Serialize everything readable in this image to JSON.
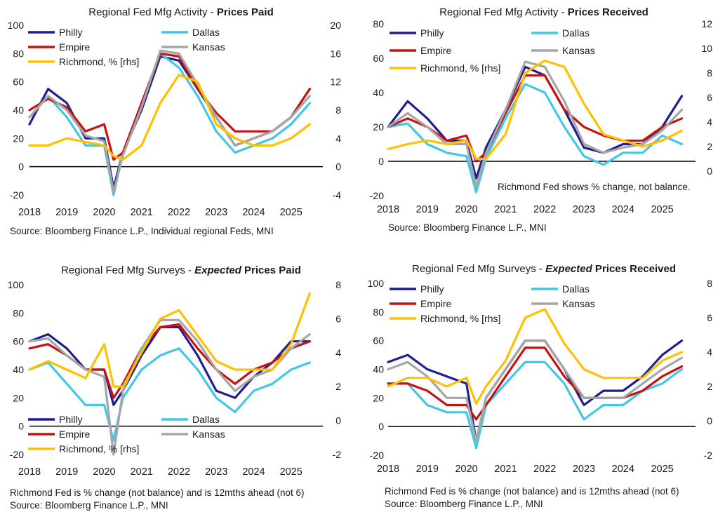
{
  "colors": {
    "philly": "#1f1f8f",
    "dallas": "#44c6e6",
    "empire": "#c41414",
    "kansas": "#a6a6a6",
    "richmond": "#ffc000",
    "zero": "#000000"
  },
  "legend": {
    "philly": "Philly",
    "dallas": "Dallas",
    "empire": "Empire",
    "kansas": "Kansas",
    "richmond": "Richmond, % [rhs]",
    "richmond_short": "Richmond, % [rhs]"
  },
  "panels": [
    {
      "title_plain": "Regional Fed Mfg Activity - ",
      "title_em": "Prices Paid",
      "em_style": "bold",
      "source": "Source: Bloomberg Finance L.P., Individual regional Feds, MNI",
      "note": "",
      "inline_note": ""
    },
    {
      "title_plain": "Regional Fed Mfg Activity - ",
      "title_em": "Prices Received",
      "em_style": "bold",
      "source": "Source: Bloomberg Finance L.P., MNI",
      "note": "",
      "inline_note": "Richmond Fed shows % change, not balance."
    },
    {
      "title_plain": "Regional Fed Mfg Surveys - ",
      "title_em": "Expected",
      "title_tail": " Prices Paid",
      "em_style": "italic",
      "source": "Source: Bloomberg Finance L.P., MNI",
      "note": "Richmond Fed is % change (not balance) and is 12mths ahead (not 6)",
      "inline_note": ""
    },
    {
      "title_plain": "Regional Fed Mfg Surveys - ",
      "title_em": "Expected",
      "title_tail": " Prices Received",
      "em_style": "italic",
      "source": "Source: Bloomberg Finance L.P., MNI",
      "note": "Richmond Fed is % change (not balance) and is 12mths ahead (not 6)",
      "inline_note": ""
    }
  ],
  "chart_data": [
    {
      "type": "line",
      "title": "Regional Fed Mfg Activity - Prices Paid",
      "categories": [
        "2018",
        "2019",
        "2020",
        "2021",
        "2022",
        "2023",
        "2024",
        "2025"
      ],
      "ylim": [
        -20,
        100
      ],
      "yticks": [
        -20,
        0,
        20,
        40,
        60,
        80,
        100
      ],
      "y2lim": [
        -4,
        20
      ],
      "y2ticks": [
        -4,
        0,
        4,
        8,
        12,
        16,
        20
      ],
      "x": [
        2018.0,
        2018.5,
        2019.0,
        2019.5,
        2020.0,
        2020.25,
        2020.5,
        2021.0,
        2021.5,
        2022.0,
        2022.5,
        2023.0,
        2023.5,
        2024.0,
        2024.5,
        2025.0,
        2025.5
      ],
      "series": [
        {
          "name": "Philly",
          "key": "philly",
          "axis": "left",
          "values": [
            30,
            55,
            45,
            20,
            20,
            -15,
            10,
            40,
            78,
            75,
            55,
            35,
            15,
            20,
            25,
            35,
            55
          ]
        },
        {
          "name": "Dallas",
          "key": "dallas",
          "axis": "left",
          "values": [
            35,
            50,
            35,
            15,
            15,
            -20,
            10,
            45,
            80,
            70,
            50,
            25,
            10,
            15,
            20,
            30,
            45
          ]
        },
        {
          "name": "Empire",
          "key": "empire",
          "axis": "left",
          "values": [
            40,
            48,
            42,
            25,
            30,
            5,
            10,
            45,
            80,
            78,
            55,
            38,
            25,
            25,
            25,
            35,
            55
          ]
        },
        {
          "name": "Kansas",
          "key": "kansas",
          "axis": "left",
          "values": [
            35,
            50,
            40,
            22,
            18,
            -18,
            8,
            42,
            82,
            80,
            58,
            35,
            15,
            20,
            25,
            35,
            50
          ]
        },
        {
          "name": "Richmond, % [rhs]",
          "key": "richmond",
          "axis": "right",
          "values": [
            3,
            3,
            4,
            3.5,
            3,
            1.5,
            1,
            3,
            9,
            13,
            12,
            6,
            4,
            3,
            3,
            4,
            6
          ]
        }
      ]
    },
    {
      "type": "line",
      "title": "Regional Fed Mfg Activity - Prices Received",
      "categories": [
        "2018",
        "2019",
        "2020",
        "2021",
        "2022",
        "2023",
        "2024",
        "2025"
      ],
      "ylim": [
        -20,
        80
      ],
      "yticks": [
        -20,
        0,
        20,
        40,
        60,
        80
      ],
      "y2lim": [
        -2,
        12
      ],
      "y2ticks": [
        0,
        2,
        4,
        6,
        8,
        10,
        12
      ],
      "x": [
        2018.0,
        2018.5,
        2019.0,
        2019.5,
        2020.0,
        2020.25,
        2020.5,
        2021.0,
        2021.5,
        2022.0,
        2022.5,
        2023.0,
        2023.5,
        2024.0,
        2024.5,
        2025.0,
        2025.5
      ],
      "series": [
        {
          "name": "Philly",
          "key": "philly",
          "axis": "left",
          "values": [
            20,
            35,
            25,
            12,
            12,
            -10,
            8,
            30,
            55,
            50,
            30,
            8,
            5,
            10,
            10,
            20,
            38
          ]
        },
        {
          "name": "Dallas",
          "key": "dallas",
          "axis": "left",
          "values": [
            20,
            22,
            10,
            5,
            3,
            -18,
            2,
            25,
            45,
            40,
            20,
            3,
            -2,
            5,
            5,
            15,
            10
          ]
        },
        {
          "name": "Empire",
          "key": "empire",
          "axis": "left",
          "values": [
            20,
            25,
            20,
            12,
            15,
            0,
            5,
            28,
            50,
            50,
            30,
            20,
            15,
            12,
            12,
            20,
            25
          ]
        },
        {
          "name": "Kansas",
          "key": "kansas",
          "axis": "left",
          "values": [
            20,
            28,
            20,
            10,
            10,
            -15,
            5,
            30,
            58,
            55,
            35,
            10,
            5,
            8,
            10,
            18,
            30
          ]
        },
        {
          "name": "Richmond, % [rhs]",
          "key": "richmond",
          "axis": "right",
          "values": [
            1.8,
            2.2,
            2.5,
            2.2,
            2.5,
            1,
            1,
            3,
            8,
            9,
            8.5,
            5.5,
            3,
            2.5,
            2,
            2.5,
            3.3
          ]
        }
      ]
    },
    {
      "type": "line",
      "title": "Regional Fed Mfg Surveys - Expected Prices Paid",
      "categories": [
        "2018",
        "2019",
        "2020",
        "2021",
        "2022",
        "2023",
        "2024",
        "2025"
      ],
      "ylim": [
        -20,
        100
      ],
      "yticks": [
        -20,
        0,
        20,
        40,
        60,
        80,
        100
      ],
      "y2lim": [
        -2,
        8
      ],
      "y2ticks": [
        -2,
        0,
        2,
        4,
        6,
        8
      ],
      "x": [
        2018.0,
        2018.5,
        2019.0,
        2019.5,
        2020.0,
        2020.25,
        2020.5,
        2021.0,
        2021.5,
        2022.0,
        2022.5,
        2023.0,
        2023.5,
        2024.0,
        2024.5,
        2025.0,
        2025.5
      ],
      "series": [
        {
          "name": "Philly",
          "key": "philly",
          "axis": "left",
          "values": [
            60,
            65,
            55,
            40,
            40,
            15,
            25,
            50,
            70,
            70,
            50,
            25,
            20,
            35,
            45,
            60,
            60
          ]
        },
        {
          "name": "Dallas",
          "key": "dallas",
          "axis": "left",
          "values": [
            40,
            45,
            30,
            15,
            15,
            -10,
            20,
            40,
            50,
            55,
            40,
            20,
            10,
            25,
            30,
            40,
            45
          ]
        },
        {
          "name": "Empire",
          "key": "empire",
          "axis": "left",
          "values": [
            55,
            58,
            50,
            40,
            40,
            20,
            30,
            55,
            70,
            72,
            55,
            40,
            30,
            40,
            45,
            55,
            60
          ]
        },
        {
          "name": "Kansas",
          "key": "kansas",
          "axis": "left",
          "values": [
            60,
            62,
            50,
            40,
            35,
            -20,
            25,
            55,
            75,
            75,
            60,
            40,
            25,
            35,
            40,
            55,
            65
          ]
        },
        {
          "name": "Richmond, % [rhs]",
          "key": "richmond",
          "axis": "right",
          "values": [
            3,
            3.5,
            3,
            2.5,
            4.5,
            2,
            2,
            4,
            6,
            6.5,
            5,
            3.5,
            3,
            3,
            3,
            4.5,
            7.5
          ]
        }
      ]
    },
    {
      "type": "line",
      "title": "Regional Fed Mfg Surveys - Expected Prices Received",
      "categories": [
        "2018",
        "2019",
        "2020",
        "2021",
        "2022",
        "2023",
        "2024",
        "2025"
      ],
      "ylim": [
        -20,
        100
      ],
      "yticks": [
        -20,
        0,
        20,
        40,
        60,
        80,
        100
      ],
      "y2lim": [
        -2,
        8
      ],
      "y2ticks": [
        -2,
        0,
        2,
        4,
        6,
        8
      ],
      "x": [
        2018.0,
        2018.5,
        2019.0,
        2019.5,
        2020.0,
        2020.25,
        2020.5,
        2021.0,
        2021.5,
        2022.0,
        2022.5,
        2023.0,
        2023.5,
        2024.0,
        2024.5,
        2025.0,
        2025.5
      ],
      "series": [
        {
          "name": "Philly",
          "key": "philly",
          "axis": "left",
          "values": [
            45,
            50,
            40,
            35,
            30,
            -10,
            20,
            40,
            60,
            60,
            40,
            15,
            25,
            25,
            35,
            50,
            60
          ]
        },
        {
          "name": "Dallas",
          "key": "dallas",
          "axis": "left",
          "values": [
            30,
            30,
            15,
            10,
            10,
            -15,
            15,
            30,
            45,
            45,
            30,
            5,
            15,
            15,
            25,
            30,
            40
          ]
        },
        {
          "name": "Empire",
          "key": "empire",
          "axis": "left",
          "values": [
            30,
            30,
            25,
            15,
            15,
            5,
            15,
            35,
            55,
            55,
            35,
            20,
            20,
            20,
            25,
            35,
            42
          ]
        },
        {
          "name": "Kansas",
          "key": "kansas",
          "axis": "left",
          "values": [
            40,
            45,
            35,
            20,
            20,
            -10,
            20,
            40,
            60,
            60,
            40,
            20,
            20,
            20,
            30,
            40,
            48
          ]
        },
        {
          "name": "Richmond, % [rhs]",
          "key": "richmond",
          "axis": "right",
          "values": [
            2,
            2.5,
            2.5,
            2,
            2.5,
            1,
            2,
            3.5,
            6,
            6.5,
            4.5,
            3,
            2.5,
            2.5,
            2.5,
            3.5,
            4
          ]
        }
      ]
    }
  ]
}
